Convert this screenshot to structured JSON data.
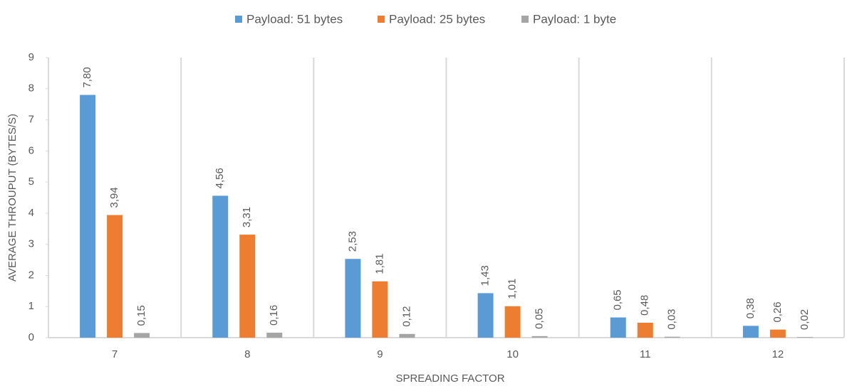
{
  "chart_data": {
    "type": "bar",
    "x_label": "SPREADING FACTOR",
    "y_label": "AVERAGE THROUPUT (BYTES/S)",
    "categories": [
      "7",
      "8",
      "9",
      "10",
      "11",
      "12"
    ],
    "series": [
      {
        "name": "Payload: 51 bytes",
        "color": "#5b9bd5",
        "values": [
          7.8,
          4.56,
          2.53,
          1.43,
          0.65,
          0.38
        ],
        "value_labels": [
          "7,80",
          "4,56",
          "2,53",
          "1,43",
          "0,65",
          "0,38"
        ]
      },
      {
        "name": "Payload: 25 bytes",
        "color": "#ed7d31",
        "values": [
          3.94,
          3.31,
          1.81,
          1.01,
          0.48,
          0.26
        ],
        "value_labels": [
          "3,94",
          "3,31",
          "1,81",
          "1,01",
          "0,48",
          "0,26"
        ]
      },
      {
        "name": "Payload: 1 byte",
        "color": "#a5a5a5",
        "values": [
          0.15,
          0.16,
          0.12,
          0.05,
          0.03,
          0.02
        ],
        "value_labels": [
          "0,15",
          "0,16",
          "0,12",
          "0,05",
          "0,03",
          "0,02"
        ]
      }
    ],
    "ylim": [
      0,
      9
    ],
    "yticks": [
      0,
      1,
      2,
      3,
      4,
      5,
      6,
      7,
      8,
      9
    ],
    "legend": "top"
  }
}
